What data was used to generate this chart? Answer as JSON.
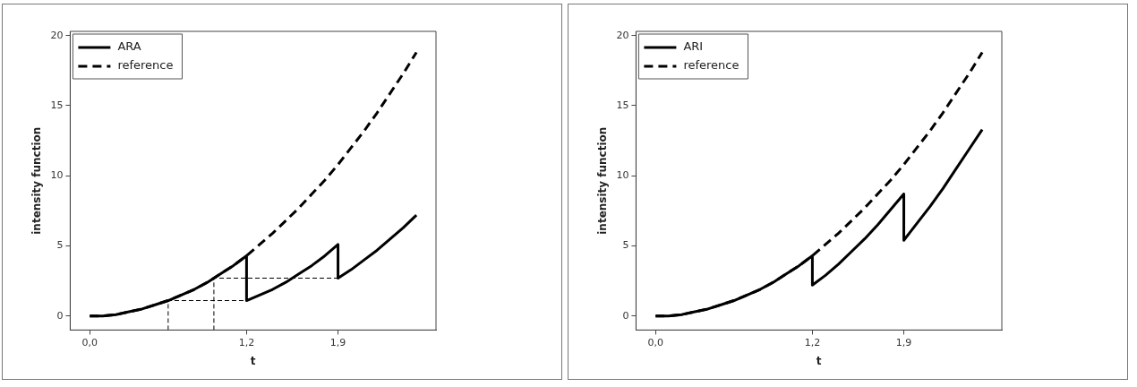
{
  "chart_data": [
    {
      "type": "line",
      "xlabel": "t",
      "ylabel": "intensity function",
      "xlim": [
        -0.15,
        2.65
      ],
      "ylim": [
        -1,
        20.3
      ],
      "xticks": [
        {
          "value": 0,
          "label": "0,0"
        },
        {
          "value": 1.2,
          "label": "1,2"
        },
        {
          "value": 1.9,
          "label": "1,9"
        }
      ],
      "yticks": [
        0,
        5,
        10,
        15,
        20
      ],
      "legend": "top left",
      "marker": "none",
      "series": [
        {
          "name": "ARA",
          "color": "#000000",
          "line_style": "solid",
          "x": [
            0,
            0.1,
            0.2,
            0.3,
            0.4,
            0.5,
            0.6,
            0.7,
            0.8,
            0.9,
            1.0,
            1.1,
            1.2,
            1.2,
            1.3,
            1.4,
            1.5,
            1.6,
            1.7,
            1.8,
            1.9,
            1.9,
            2.0,
            2.1,
            2.2,
            2.3,
            2.4,
            2.5
          ],
          "values": [
            0,
            0,
            0.1,
            0.3,
            0.5,
            0.8,
            1.1,
            1.5,
            1.9,
            2.4,
            3,
            3.6,
            4.3,
            1.1,
            1.5,
            1.9,
            2.4,
            3,
            3.6,
            4.3,
            5.1,
            2.7,
            3.3,
            4.0,
            4.7,
            5.5,
            6.3,
            7.2
          ]
        },
        {
          "name": "reference",
          "color": "#000000",
          "line_style": "dashed",
          "x": [
            0,
            0.1,
            0.2,
            0.3,
            0.4,
            0.5,
            0.6,
            0.7,
            0.8,
            0.9,
            1.0,
            1.1,
            1.2,
            1.3,
            1.4,
            1.5,
            1.6,
            1.7,
            1.8,
            1.9,
            2.0,
            2.1,
            2.2,
            2.3,
            2.4,
            2.5
          ],
          "values": [
            0,
            0,
            0.1,
            0.3,
            0.5,
            0.8,
            1.1,
            1.5,
            1.9,
            2.4,
            3,
            3.6,
            4.3,
            5.1,
            5.9,
            6.8,
            7.7,
            8.7,
            9.7,
            10.8,
            12,
            13.2,
            14.5,
            15.9,
            17.3,
            18.8
          ]
        },
        {
          "color": "#000000",
          "line_style": "dashed",
          "x": [
            0.6,
            0.6,
            1.2
          ],
          "values": [
            -1,
            1.1,
            1.1
          ]
        },
        {
          "color": "#000000",
          "line_style": "dashed",
          "x": [
            0.95,
            0.95,
            1.9
          ],
          "values": [
            -1,
            2.7,
            2.7
          ]
        }
      ]
    },
    {
      "type": "line",
      "xlabel": "t",
      "ylabel": "intensity function",
      "xlim": [
        -0.15,
        2.65
      ],
      "ylim": [
        -1,
        20.3
      ],
      "xticks": [
        {
          "value": 0,
          "label": "0,0"
        },
        {
          "value": 1.2,
          "label": "1,2"
        },
        {
          "value": 1.9,
          "label": "1,9"
        }
      ],
      "yticks": [
        0,
        5,
        10,
        15,
        20
      ],
      "legend": "top left",
      "marker": "none",
      "series": [
        {
          "name": "ARI",
          "color": "#000000",
          "line_style": "solid",
          "x": [
            0,
            0.1,
            0.2,
            0.3,
            0.4,
            0.5,
            0.6,
            0.7,
            0.8,
            0.9,
            1.0,
            1.1,
            1.2,
            1.2,
            1.3,
            1.4,
            1.5,
            1.6,
            1.7,
            1.8,
            1.9,
            1.9,
            2.0,
            2.1,
            2.2,
            2.3,
            2.4,
            2.5
          ],
          "values": [
            0,
            0,
            0.1,
            0.3,
            0.5,
            0.8,
            1.1,
            1.5,
            1.9,
            2.4,
            3,
            3.6,
            4.3,
            2.2,
            2.9,
            3.7,
            4.6,
            5.5,
            6.5,
            7.6,
            8.7,
            5.4,
            6.6,
            7.8,
            9.1,
            10.5,
            11.9,
            13.3
          ]
        },
        {
          "name": "reference",
          "color": "#000000",
          "line_style": "dashed",
          "x": [
            0,
            0.1,
            0.2,
            0.3,
            0.4,
            0.5,
            0.6,
            0.7,
            0.8,
            0.9,
            1.0,
            1.1,
            1.2,
            1.3,
            1.4,
            1.5,
            1.6,
            1.7,
            1.8,
            1.9,
            2.0,
            2.1,
            2.2,
            2.3,
            2.4,
            2.5
          ],
          "values": [
            0,
            0,
            0.1,
            0.3,
            0.5,
            0.8,
            1.1,
            1.5,
            1.9,
            2.4,
            3,
            3.6,
            4.3,
            5.1,
            5.9,
            6.8,
            7.7,
            8.7,
            9.7,
            10.8,
            12,
            13.2,
            14.5,
            15.9,
            17.3,
            18.8
          ]
        }
      ]
    }
  ]
}
